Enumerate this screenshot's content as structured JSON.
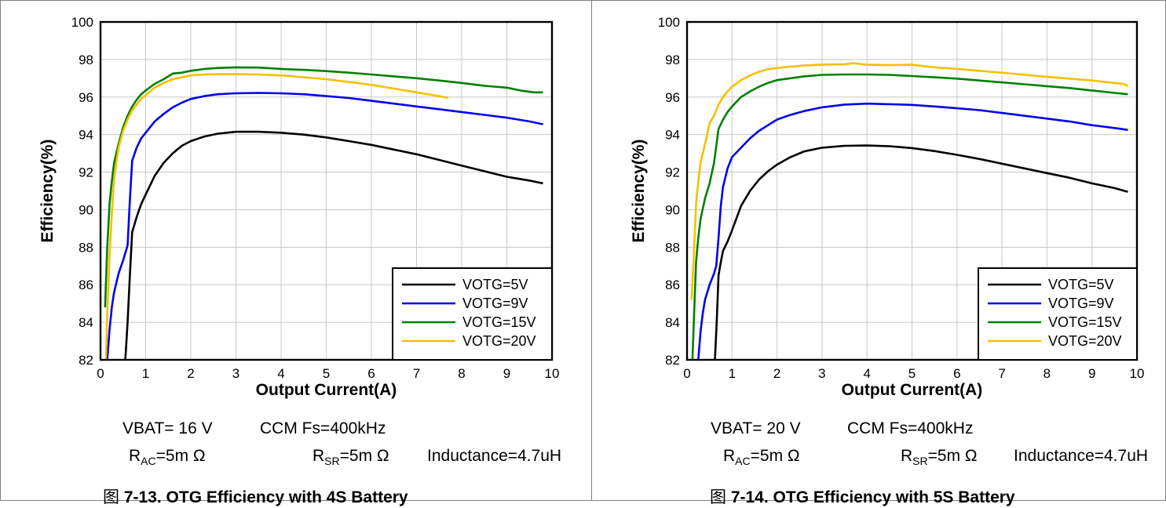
{
  "chart_data": [
    {
      "type": "line",
      "xlabel": "Output Current(A)",
      "ylabel": "Efficiency(%)",
      "xlim": [
        0,
        10
      ],
      "ylim": [
        82,
        100
      ],
      "xticks": [
        "0",
        "1",
        "2",
        "3",
        "4",
        "5",
        "6",
        "7",
        "8",
        "9",
        "10"
      ],
      "yticks": [
        "82",
        "84",
        "86",
        "88",
        "90",
        "92",
        "94",
        "96",
        "98",
        "100"
      ],
      "grid": true,
      "legend_position": "bottom-right",
      "series": [
        {
          "name": "VOTG=5V",
          "color": "#000000",
          "x": [
            0.55,
            0.6,
            0.65,
            0.7,
            0.8,
            0.9,
            1.0,
            1.2,
            1.4,
            1.6,
            1.8,
            2.0,
            2.3,
            2.6,
            3.0,
            3.5,
            4.0,
            4.5,
            5.0,
            5.5,
            6.0,
            6.5,
            7.0,
            7.5,
            8.0,
            8.5,
            9.0,
            9.5,
            9.8
          ],
          "y": [
            82.0,
            84.0,
            86.5,
            88.8,
            89.6,
            90.3,
            90.8,
            91.8,
            92.5,
            93.0,
            93.4,
            93.65,
            93.9,
            94.05,
            94.15,
            94.15,
            94.1,
            94.0,
            93.85,
            93.65,
            93.45,
            93.2,
            92.95,
            92.65,
            92.35,
            92.05,
            91.75,
            91.55,
            91.4
          ]
        },
        {
          "name": "VOTG=9V",
          "color": "#0000ee",
          "x": [
            0.15,
            0.2,
            0.25,
            0.3,
            0.4,
            0.5,
            0.6,
            0.65,
            0.7,
            0.8,
            0.9,
            1.0,
            1.2,
            1.4,
            1.6,
            1.8,
            2.0,
            2.3,
            2.6,
            3.0,
            3.5,
            4.0,
            4.5,
            5.0,
            5.5,
            6.0,
            6.5,
            7.0,
            7.5,
            8.0,
            8.5,
            9.0,
            9.5,
            9.8
          ],
          "y": [
            82.0,
            83.6,
            84.8,
            85.6,
            86.6,
            87.3,
            88.1,
            90.5,
            92.6,
            93.3,
            93.8,
            94.1,
            94.7,
            95.1,
            95.45,
            95.7,
            95.9,
            96.05,
            96.15,
            96.2,
            96.22,
            96.2,
            96.15,
            96.05,
            95.95,
            95.8,
            95.65,
            95.5,
            95.35,
            95.2,
            95.05,
            94.9,
            94.7,
            94.55
          ]
        },
        {
          "name": "VOTG=15V",
          "color": "#008000",
          "x": [
            0.1,
            0.15,
            0.2,
            0.25,
            0.3,
            0.35,
            0.4,
            0.5,
            0.6,
            0.7,
            0.8,
            0.9,
            1.0,
            1.2,
            1.4,
            1.6,
            1.8,
            2.0,
            2.3,
            2.6,
            3.0,
            3.5,
            4.0,
            4.5,
            5.0,
            5.5,
            6.0,
            6.5,
            7.0,
            7.5,
            8.0,
            8.5,
            9.0,
            9.3,
            9.6,
            9.8
          ],
          "y": [
            84.8,
            88.0,
            90.3,
            91.5,
            92.5,
            93.0,
            93.5,
            94.4,
            95.0,
            95.5,
            95.85,
            96.15,
            96.35,
            96.7,
            96.95,
            97.25,
            97.3,
            97.4,
            97.5,
            97.55,
            97.58,
            97.57,
            97.5,
            97.45,
            97.38,
            97.3,
            97.2,
            97.1,
            97.0,
            96.88,
            96.75,
            96.6,
            96.5,
            96.35,
            96.25,
            96.25
          ]
        },
        {
          "name": "VOTG=20V",
          "color": "#f5c000",
          "x": [
            0.12,
            0.15,
            0.2,
            0.25,
            0.3,
            0.35,
            0.4,
            0.5,
            0.6,
            0.7,
            0.8,
            0.9,
            1.0,
            1.2,
            1.4,
            1.6,
            1.8,
            2.0,
            2.3,
            2.6,
            3.0,
            3.5,
            4.0,
            4.5,
            5.0,
            5.5,
            6.0,
            6.5,
            7.0,
            7.5,
            7.7
          ],
          "y": [
            82.0,
            84.5,
            87.5,
            89.8,
            91.6,
            92.5,
            93.3,
            94.2,
            94.8,
            95.3,
            95.6,
            95.9,
            96.1,
            96.5,
            96.75,
            96.95,
            97.05,
            97.15,
            97.2,
            97.22,
            97.22,
            97.2,
            97.15,
            97.05,
            96.95,
            96.8,
            96.65,
            96.45,
            96.25,
            96.05,
            95.95
          ]
        }
      ]
    },
    {
      "type": "line",
      "xlabel": "Output Current(A)",
      "ylabel": "Efficiency(%)",
      "xlim": [
        0,
        10
      ],
      "ylim": [
        82,
        100
      ],
      "xticks": [
        "0",
        "1",
        "2",
        "3",
        "4",
        "5",
        "6",
        "7",
        "8",
        "9",
        "10"
      ],
      "yticks": [
        "82",
        "84",
        "86",
        "88",
        "90",
        "92",
        "94",
        "96",
        "98",
        "100"
      ],
      "grid": true,
      "legend_position": "bottom-right",
      "series": [
        {
          "name": "VOTG=5V",
          "color": "#000000",
          "x": [
            0.62,
            0.66,
            0.7,
            0.75,
            0.8,
            0.9,
            1.0,
            1.2,
            1.4,
            1.6,
            1.8,
            2.0,
            2.3,
            2.6,
            3.0,
            3.5,
            4.0,
            4.5,
            5.0,
            5.5,
            6.0,
            6.5,
            7.0,
            7.5,
            8.0,
            8.5,
            9.0,
            9.5,
            9.8
          ],
          "y": [
            82.0,
            84.0,
            86.5,
            87.2,
            87.8,
            88.3,
            88.9,
            90.2,
            91.0,
            91.6,
            92.05,
            92.4,
            92.8,
            93.1,
            93.3,
            93.4,
            93.42,
            93.38,
            93.28,
            93.12,
            92.92,
            92.7,
            92.45,
            92.2,
            91.95,
            91.7,
            91.4,
            91.15,
            90.95
          ]
        },
        {
          "name": "VOTG=9V",
          "color": "#0000ee",
          "x": [
            0.25,
            0.3,
            0.35,
            0.4,
            0.5,
            0.6,
            0.65,
            0.7,
            0.75,
            0.8,
            0.9,
            1.0,
            1.2,
            1.4,
            1.6,
            1.8,
            2.0,
            2.3,
            2.6,
            3.0,
            3.5,
            4.0,
            4.5,
            5.0,
            5.5,
            6.0,
            6.5,
            7.0,
            7.5,
            8.0,
            8.5,
            9.0,
            9.5,
            9.8
          ],
          "y": [
            82.0,
            83.5,
            84.5,
            85.2,
            86.0,
            86.6,
            87.0,
            88.5,
            90.2,
            91.2,
            92.2,
            92.8,
            93.3,
            93.8,
            94.2,
            94.5,
            94.8,
            95.05,
            95.25,
            95.45,
            95.6,
            95.65,
            95.62,
            95.58,
            95.5,
            95.4,
            95.3,
            95.15,
            95.0,
            94.85,
            94.7,
            94.5,
            94.35,
            94.25
          ]
        },
        {
          "name": "VOTG=15V",
          "color": "#008000",
          "x": [
            0.12,
            0.15,
            0.2,
            0.25,
            0.3,
            0.4,
            0.5,
            0.6,
            0.7,
            0.8,
            0.9,
            1.0,
            1.2,
            1.4,
            1.6,
            1.8,
            2.0,
            2.3,
            2.6,
            3.0,
            3.5,
            4.0,
            4.5,
            5.0,
            5.5,
            6.0,
            6.5,
            7.0,
            7.5,
            8.0,
            8.5,
            9.0,
            9.5,
            9.8
          ],
          "y": [
            82.0,
            84.0,
            87.2,
            88.5,
            89.5,
            90.6,
            91.4,
            92.5,
            94.3,
            94.8,
            95.2,
            95.5,
            96.0,
            96.3,
            96.55,
            96.75,
            96.9,
            97.0,
            97.1,
            97.18,
            97.2,
            97.2,
            97.18,
            97.12,
            97.05,
            96.98,
            96.88,
            96.78,
            96.68,
            96.58,
            96.48,
            96.35,
            96.22,
            96.15
          ]
        },
        {
          "name": "VOTG=20V",
          "color": "#f5c000",
          "x": [
            0.1,
            0.15,
            0.2,
            0.25,
            0.3,
            0.35,
            0.4,
            0.5,
            0.55,
            0.6,
            0.7,
            0.8,
            0.9,
            1.0,
            1.2,
            1.4,
            1.6,
            1.8,
            2.0,
            2.3,
            2.6,
            3.0,
            3.5,
            3.7,
            4.0,
            4.5,
            5.0,
            5.5,
            6.0,
            6.5,
            7.0,
            7.5,
            8.0,
            8.5,
            9.0,
            9.5,
            9.7,
            9.8
          ],
          "y": [
            85.2,
            87.5,
            90.3,
            91.5,
            92.5,
            93.0,
            93.5,
            94.6,
            94.8,
            95.0,
            95.6,
            96.0,
            96.3,
            96.55,
            96.9,
            97.15,
            97.35,
            97.48,
            97.55,
            97.62,
            97.68,
            97.72,
            97.75,
            97.8,
            97.72,
            97.7,
            97.72,
            97.58,
            97.5,
            97.4,
            97.3,
            97.18,
            97.08,
            96.98,
            96.88,
            96.75,
            96.7,
            96.58
          ]
        }
      ]
    }
  ],
  "panels": [
    {
      "conditions_line1": {
        "vbat": "VBAT= 16 V",
        "ccm": "CCM Fs=400kHz"
      },
      "rac": {
        "main": "R",
        "sub": "AC",
        "rest": "=5m Ω"
      },
      "rsr": {
        "main": "R",
        "sub": "SR",
        "rest": "=5m Ω"
      },
      "inductance": "Inductance=4.7uH",
      "caption": {
        "glyph": "图",
        "text": " 7-13. OTG Efficiency with 4S Battery"
      }
    },
    {
      "conditions_line1": {
        "vbat": "VBAT= 20 V",
        "ccm": "CCM Fs=400kHz"
      },
      "rac": {
        "main": "R",
        "sub": "AC",
        "rest": "=5m Ω"
      },
      "rsr": {
        "main": "R",
        "sub": "SR",
        "rest": "=5m Ω"
      },
      "inductance": "Inductance=4.7uH",
      "caption": {
        "glyph": "图",
        "text": " 7-14. OTG Efficiency with 5S Battery"
      }
    }
  ]
}
